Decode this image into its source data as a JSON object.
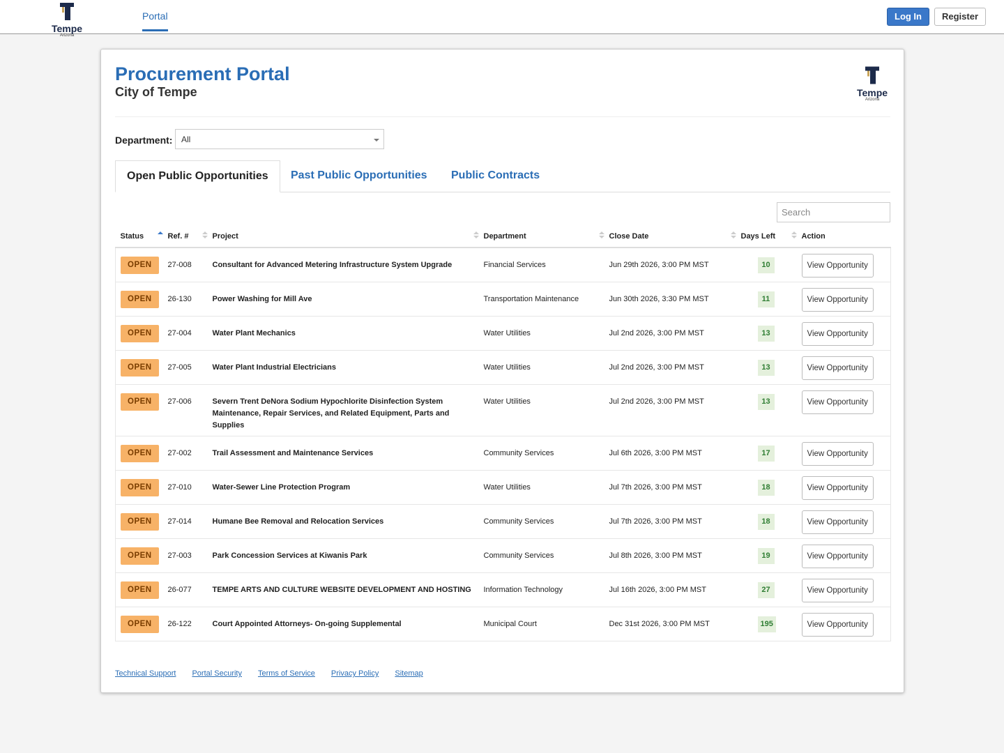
{
  "nav": {
    "logo": "Tempe",
    "logo_sub": "Arizona",
    "portal": "Portal",
    "login": "Log In",
    "register": "Register"
  },
  "header": {
    "title": "Procurement Portal",
    "subtitle": "City of Tempe",
    "logo": "Tempe",
    "logo_sub": "Arizona"
  },
  "filter": {
    "label": "Department:",
    "value": "All"
  },
  "tabs": [
    "Open Public Opportunities",
    "Past Public Opportunities",
    "Public Contracts"
  ],
  "search_placeholder": "Search",
  "table": {
    "columns": [
      "Status",
      "Ref. #",
      "Project",
      "Department",
      "Close Date",
      "Days Left",
      "Action"
    ],
    "rows": [
      {
        "status": "OPEN",
        "ref": "27-008",
        "project": "Consultant for Advanced Metering Infrastructure System Upgrade",
        "department": "Financial Services",
        "close_date": "Jun 29th 2026, 3:00 PM MST",
        "days_left": 10,
        "action": "View Opportunity"
      },
      {
        "status": "OPEN",
        "ref": "26-130",
        "project": "Power Washing for Mill Ave",
        "department": "Transportation Maintenance",
        "close_date": "Jun 30th 2026, 3:30 PM MST",
        "days_left": 11,
        "action": "View Opportunity"
      },
      {
        "status": "OPEN",
        "ref": "27-004",
        "project": "Water Plant Mechanics",
        "department": "Water Utilities",
        "close_date": "Jul 2nd 2026, 3:00 PM MST",
        "days_left": 13,
        "action": "View Opportunity"
      },
      {
        "status": "OPEN",
        "ref": "27-005",
        "project": "Water Plant Industrial Electricians",
        "department": "Water Utilities",
        "close_date": "Jul 2nd 2026, 3:00 PM MST",
        "days_left": 13,
        "action": "View Opportunity"
      },
      {
        "status": "OPEN",
        "ref": "27-006",
        "project": "Severn Trent DeNora Sodium Hypochlorite Disinfection System Maintenance, Repair Services, and Related Equipment, Parts and Supplies",
        "department": "Water Utilities",
        "close_date": "Jul 2nd 2026, 3:00 PM MST",
        "days_left": 13,
        "action": "View Opportunity"
      },
      {
        "status": "OPEN",
        "ref": "27-002",
        "project": "Trail Assessment and Maintenance Services",
        "department": "Community Services",
        "close_date": "Jul 6th 2026, 3:00 PM MST",
        "days_left": 17,
        "action": "View Opportunity"
      },
      {
        "status": "OPEN",
        "ref": "27-010",
        "project": "Water-Sewer Line Protection Program",
        "department": "Water Utilities",
        "close_date": "Jul 7th 2026, 3:00 PM MST",
        "days_left": 18,
        "action": "View Opportunity"
      },
      {
        "status": "OPEN",
        "ref": "27-014",
        "project": "Humane Bee Removal and Relocation Services",
        "department": "Community Services",
        "close_date": "Jul 7th 2026, 3:00 PM MST",
        "days_left": 18,
        "action": "View Opportunity"
      },
      {
        "status": "OPEN",
        "ref": "27-003",
        "project": "Park Concession Services at Kiwanis Park",
        "department": "Community Services",
        "close_date": "Jul 8th 2026, 3:00 PM MST",
        "days_left": 19,
        "action": "View Opportunity"
      },
      {
        "status": "OPEN",
        "ref": "26-077",
        "project": "TEMPE ARTS AND CULTURE WEBSITE DEVELOPMENT AND HOSTING",
        "department": "Information Technology",
        "close_date": "Jul 16th 2026, 3:00 PM MST",
        "days_left": 27,
        "action": "View Opportunity"
      },
      {
        "status": "OPEN",
        "ref": "26-122",
        "project": "Court Appointed Attorneys- On-going Supplemental",
        "department": "Municipal Court",
        "close_date": "Dec 31st 2026, 3:00 PM MST",
        "days_left": 195,
        "action": "View Opportunity"
      }
    ]
  },
  "footer": {
    "links": [
      "Technical Support",
      "Portal Security",
      "Terms of Service",
      "Privacy Policy",
      "Sitemap"
    ]
  }
}
